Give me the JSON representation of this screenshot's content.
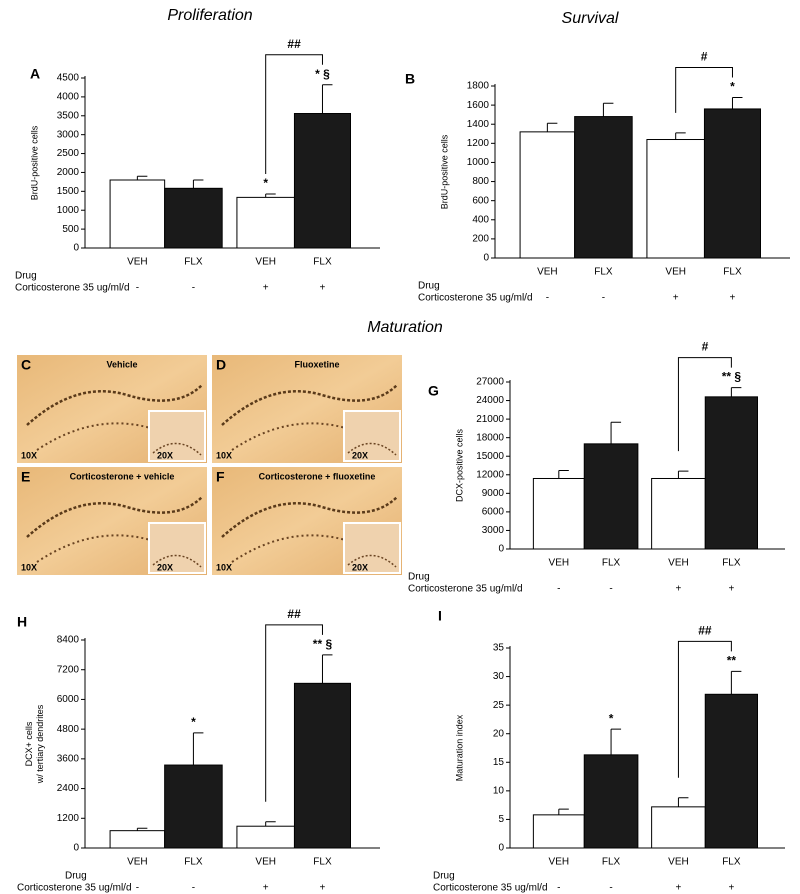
{
  "headings": [
    "Proliferation",
    "Survival",
    "Maturation"
  ],
  "micrographs": [
    {
      "letter": "C",
      "title": "Vehicle",
      "mag_main": "10X",
      "mag_inset": "20X"
    },
    {
      "letter": "D",
      "title": "Fluoxetine",
      "mag_main": "10X",
      "mag_inset": "20X"
    },
    {
      "letter": "E",
      "title": "Corticosterone + vehicle",
      "mag_main": "10X",
      "mag_inset": "20X"
    },
    {
      "letter": "F",
      "title": "Corticosterone + fluoxetine",
      "mag_main": "10X",
      "mag_inset": "20X"
    }
  ],
  "chart_data": [
    {
      "type": "bar",
      "panel": "A",
      "y_label": [
        "BrdU-positive cells"
      ],
      "categories": [
        "VEH",
        "FLX",
        "VEH",
        "FLX"
      ],
      "row_labels": [
        "Drug",
        "Corticosterone 35 ug/ml/d"
      ],
      "corticosterone": [
        "-",
        "-",
        "+",
        "+"
      ],
      "values": [
        1800,
        1580,
        1340,
        3560
      ],
      "errors": [
        100,
        220,
        90,
        760
      ],
      "colors": [
        "#ffffff",
        "#1a1a1a",
        "#ffffff",
        "#1a1a1a"
      ],
      "bar_labels": [
        null,
        null,
        "*",
        "* §"
      ],
      "bracket_label": "##",
      "ylim": [
        0,
        4500
      ],
      "yticks": [
        0,
        500,
        1000,
        1500,
        2000,
        2500,
        3000,
        3500,
        4000,
        4500
      ]
    },
    {
      "type": "bar",
      "panel": "B",
      "y_label": [
        "BrdU-positive cells"
      ],
      "categories": [
        "VEH",
        "FLX",
        "VEH",
        "FLX"
      ],
      "row_labels": [
        "Drug",
        "Corticosterone 35 ug/ml/d"
      ],
      "corticosterone": [
        "-",
        "-",
        "+",
        "+"
      ],
      "values": [
        1320,
        1480,
        1240,
        1560
      ],
      "errors": [
        90,
        140,
        70,
        120
      ],
      "colors": [
        "#ffffff",
        "#1a1a1a",
        "#ffffff",
        "#1a1a1a"
      ],
      "bar_labels": [
        null,
        null,
        null,
        "*"
      ],
      "bracket_label": "#",
      "ylim": [
        0,
        1800
      ],
      "yticks": [
        0,
        200,
        400,
        600,
        800,
        1000,
        1200,
        1400,
        1600,
        1800
      ]
    },
    {
      "type": "bar",
      "panel": "G",
      "y_label": [
        "DCX-positive cells"
      ],
      "categories": [
        "VEH",
        "FLX",
        "VEH",
        "FLX"
      ],
      "row_labels": [
        "Drug",
        "Corticosterone 35 ug/ml/d"
      ],
      "corticosterone": [
        "-",
        "-",
        "+",
        "+"
      ],
      "values": [
        11400,
        17000,
        11400,
        24600
      ],
      "errors": [
        1300,
        3500,
        1200,
        1500
      ],
      "colors": [
        "#ffffff",
        "#1a1a1a",
        "#ffffff",
        "#1a1a1a"
      ],
      "bar_labels": [
        null,
        null,
        null,
        "** §"
      ],
      "bracket_label": "#",
      "ylim": [
        0,
        27000
      ],
      "yticks": [
        0,
        3000,
        6000,
        9000,
        12000,
        15000,
        18000,
        21000,
        24000,
        27000
      ]
    },
    {
      "type": "bar",
      "panel": "H",
      "y_label": [
        "DCX+ cells",
        "w/ tertiary dendrites"
      ],
      "categories": [
        "VEH",
        "FLX",
        "VEH",
        "FLX"
      ],
      "row_labels": [
        "Drug",
        "Corticosterone 35 ug/ml/d"
      ],
      "corticosterone": [
        "-",
        "-",
        "+",
        "+"
      ],
      "values": [
        700,
        3350,
        880,
        6650
      ],
      "errors": [
        100,
        1300,
        180,
        1150
      ],
      "colors": [
        "#ffffff",
        "#1a1a1a",
        "#ffffff",
        "#1a1a1a"
      ],
      "bar_labels": [
        null,
        "*",
        null,
        "** §"
      ],
      "bracket_label": "##",
      "ylim": [
        0,
        8400
      ],
      "yticks": [
        0,
        1200,
        2400,
        3600,
        4800,
        6000,
        7200,
        8400
      ]
    },
    {
      "type": "bar",
      "panel": "I",
      "y_label": [
        "Maturation index"
      ],
      "categories": [
        "VEH",
        "FLX",
        "VEH",
        "FLX"
      ],
      "row_labels": [
        "Drug",
        "Corticosterone 35 ug/ml/d"
      ],
      "corticosterone": [
        "-",
        "-",
        "+",
        "+"
      ],
      "values": [
        5.8,
        16.3,
        7.2,
        26.9
      ],
      "errors": [
        1,
        4.5,
        1.6,
        4
      ],
      "colors": [
        "#ffffff",
        "#1a1a1a",
        "#ffffff",
        "#1a1a1a"
      ],
      "bar_labels": [
        null,
        "*",
        null,
        "**"
      ],
      "bracket_label": "##",
      "ylim": [
        0,
        35
      ],
      "yticks": [
        0,
        5,
        10,
        15,
        20,
        25,
        30,
        35
      ]
    }
  ]
}
